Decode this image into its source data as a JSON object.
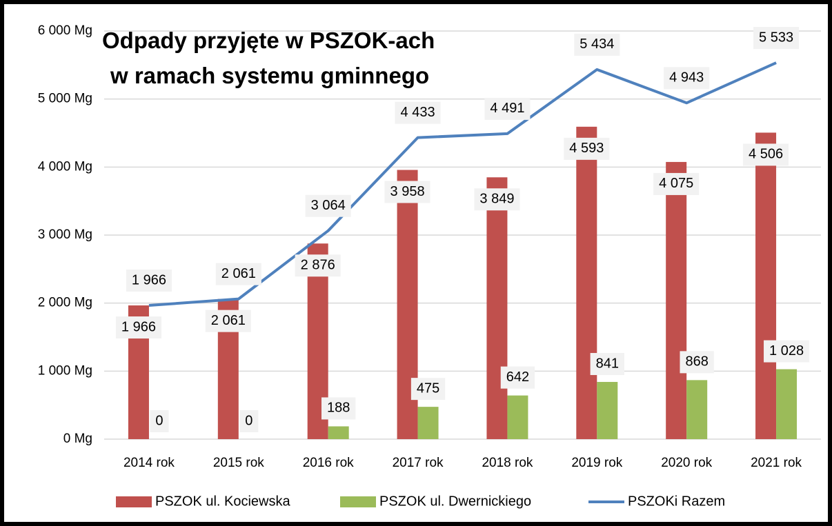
{
  "chart_data": {
    "type": "bar+line",
    "title": [
      "Odpady przyjęte w PSZOK-ach",
      "w ramach systemu gminnego"
    ],
    "categories": [
      "2014 rok",
      "2015 rok",
      "2016 rok",
      "2017 rok",
      "2018 rok",
      "2019 rok",
      "2020 rok",
      "2021 rok"
    ],
    "series": [
      {
        "name": "PSZOK ul. Kociewska",
        "type": "bar",
        "color": "#c0504d",
        "values": [
          1966,
          2061,
          2876,
          3958,
          3849,
          4593,
          4075,
          4506
        ],
        "value_labels": [
          "1 966",
          "2 061",
          "2 876",
          "3 958",
          "3 849",
          "4 593",
          "4 075",
          "4 506"
        ]
      },
      {
        "name": "PSZOK ul. Dwernickiego",
        "type": "bar",
        "color": "#9bbb59",
        "values": [
          0,
          0,
          188,
          475,
          642,
          841,
          868,
          1028
        ],
        "value_labels": [
          "0",
          "0",
          "188",
          "475",
          "642",
          "841",
          "868",
          "1 028"
        ]
      },
      {
        "name": "PSZOKi Razem",
        "type": "line",
        "color": "#4f81bd",
        "values": [
          1966,
          2061,
          3064,
          4433,
          4491,
          5434,
          4943,
          5533
        ],
        "value_labels": [
          "1 966",
          "2 061",
          "3 064",
          "4 433",
          "4 491",
          "5 434",
          "4 943",
          "5 533"
        ]
      }
    ],
    "ylim": [
      0,
      6000
    ],
    "yticks": [
      {
        "value": 0,
        "label": "0 Mg"
      },
      {
        "value": 1000,
        "label": "1 000 Mg"
      },
      {
        "value": 2000,
        "label": "2 000 Mg"
      },
      {
        "value": 3000,
        "label": "3 000 Mg"
      },
      {
        "value": 4000,
        "label": "4 000 Mg"
      },
      {
        "value": 5000,
        "label": "5 000 Mg"
      },
      {
        "value": 6000,
        "label": "6 000 Mg"
      }
    ],
    "grid": true,
    "legend": "bottom"
  }
}
